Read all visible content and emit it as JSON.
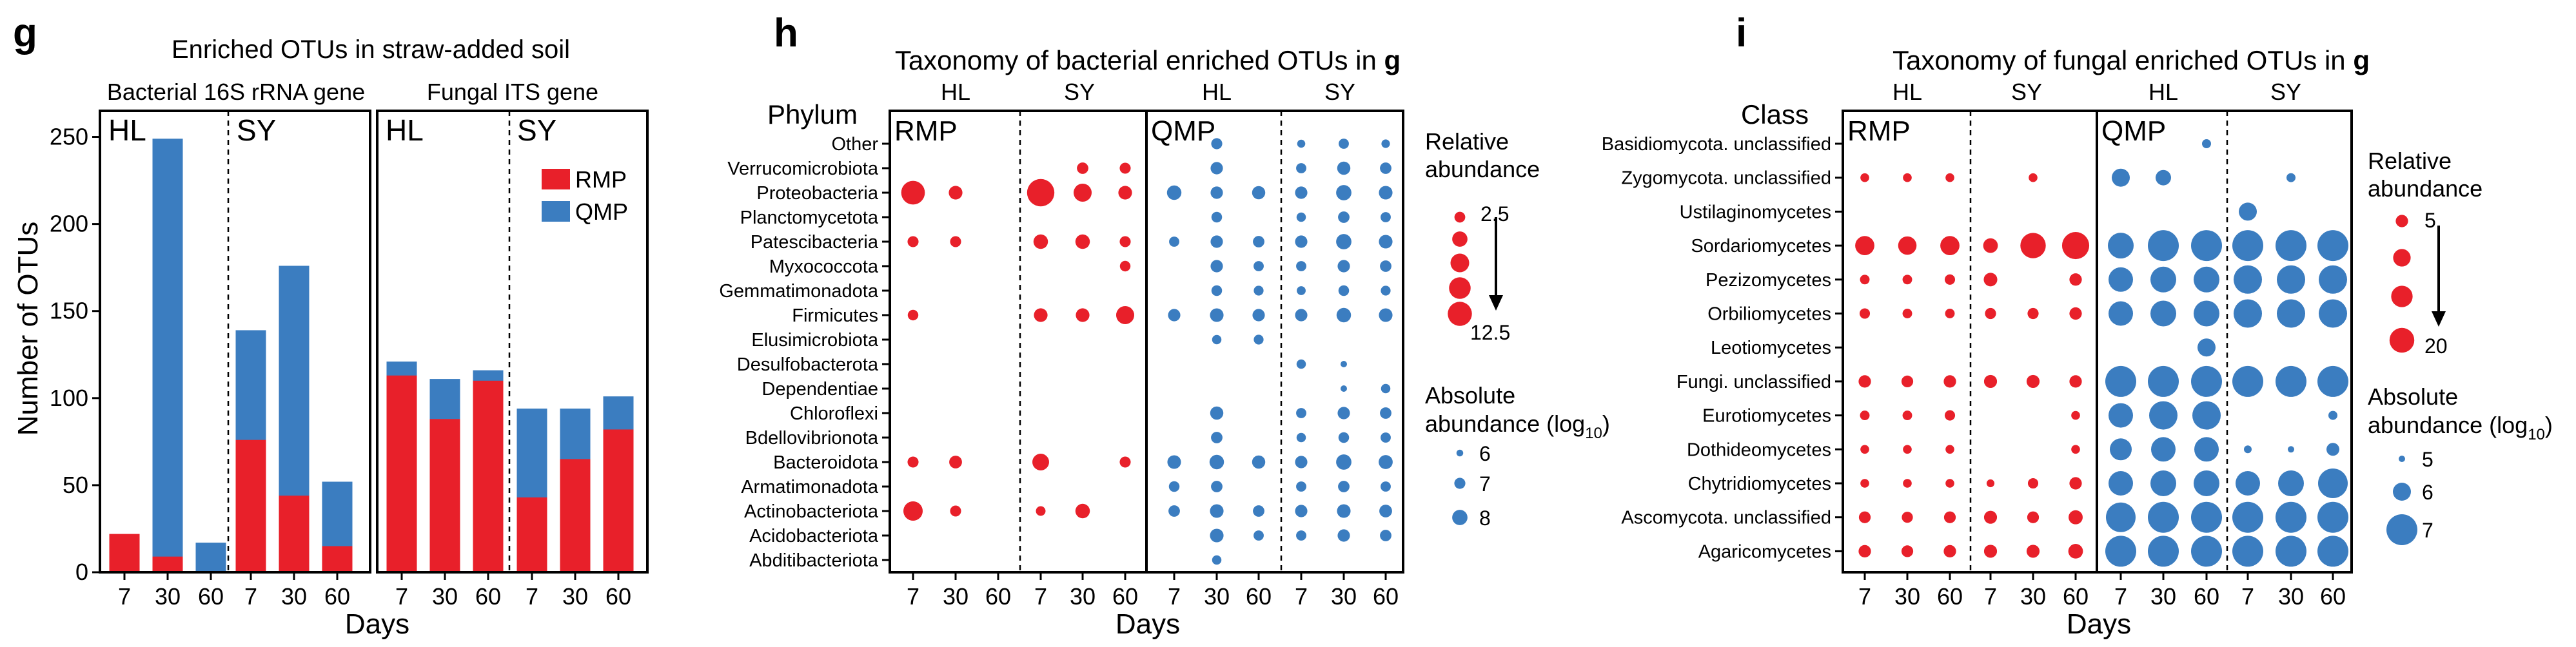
{
  "colors": {
    "rmp": "#e8202a",
    "qmp": "#3b7dc0",
    "frame": "#000000"
  },
  "panels": {
    "g": {
      "letter": "g",
      "title": "Enriched OTUs in straw-added soil",
      "subtitle_left": "Bacterial 16S rRNA gene",
      "subtitle_right": "Fungal ITS gene",
      "site_labels": [
        "HL",
        "SY",
        "HL",
        "SY"
      ],
      "legend": [
        "RMP",
        "QMP"
      ]
    },
    "h": {
      "letter": "h",
      "title_prefix": "Taxonomy of bacterial enriched OTUs in ",
      "title_bold": "g",
      "axis_title": "Phylum",
      "site_labels": [
        "HL",
        "SY",
        "HL",
        "SY"
      ],
      "group_labels": [
        "RMP",
        "QMP"
      ],
      "xlabel": "Days",
      "ticks": [
        "7",
        "30",
        "60",
        "7",
        "30",
        "60",
        "7",
        "30",
        "60",
        "7",
        "30",
        "60"
      ],
      "rel_title": [
        "Relative",
        "abundance"
      ],
      "rel_labels": [
        "2.5",
        "12.5"
      ],
      "abs_title_1": "Absolute",
      "abs_title_2": "abundance (log",
      "abs_sub": "10",
      "abs_close": ")",
      "abs_labels": [
        "6",
        "7",
        "8"
      ]
    },
    "i": {
      "letter": "i",
      "title_prefix": "Taxonomy of fungal enriched OTUs in ",
      "title_bold": "g",
      "axis_title": "Class",
      "site_labels": [
        "HL",
        "SY",
        "HL",
        "SY"
      ],
      "group_labels": [
        "RMP",
        "QMP"
      ],
      "xlabel": "Days",
      "ticks": [
        "7",
        "30",
        "60",
        "7",
        "30",
        "60",
        "7",
        "30",
        "60",
        "7",
        "30",
        "60"
      ],
      "rel_title": [
        "Relative",
        "abundance"
      ],
      "rel_labels": [
        "5",
        "20"
      ],
      "abs_title_1": "Absolute",
      "abs_title_2": "abundance (log",
      "abs_sub": "10",
      "abs_close": ")",
      "abs_labels": [
        "5",
        "6",
        "7"
      ]
    }
  },
  "chart_data": [
    {
      "type": "bar",
      "panel": "g",
      "title": "Enriched OTUs in straw-added soil",
      "xlabel": "Days",
      "ylabel": "Number of OTUs",
      "ylim": [
        0,
        265
      ],
      "yticks": [
        0,
        50,
        100,
        150,
        200,
        250
      ],
      "ylim_right": [
        0,
        265
      ],
      "groups": [
        {
          "gene": "Bacterial 16S rRNA gene",
          "site": "HL",
          "days": [
            "7",
            "30",
            "60"
          ],
          "rmp": [
            22,
            9,
            0
          ],
          "qmp": [
            14,
            249,
            17
          ]
        },
        {
          "gene": "Bacterial 16S rRNA gene",
          "site": "SY",
          "days": [
            "7",
            "30",
            "60"
          ],
          "rmp": [
            76,
            44,
            15
          ],
          "qmp": [
            139,
            176,
            52
          ]
        },
        {
          "gene": "Fungal ITS gene",
          "site": "HL",
          "days": [
            "7",
            "30",
            "60"
          ],
          "rmp": [
            113,
            88,
            110
          ],
          "qmp": [
            121,
            111,
            116
          ]
        },
        {
          "gene": "Fungal ITS gene",
          "site": "SY",
          "days": [
            "7",
            "30",
            "60"
          ],
          "rmp": [
            43,
            65,
            82
          ],
          "qmp": [
            94,
            94,
            101
          ]
        }
      ],
      "series": [
        {
          "name": "RMP"
        },
        {
          "name": "QMP"
        }
      ]
    },
    {
      "type": "scatter",
      "panel": "h",
      "title": "Taxonomy of bacterial enriched OTUs in g",
      "xlabel": "Days",
      "ylabel": "Phylum",
      "columns": [
        "RMP HL 7",
        "RMP HL 30",
        "RMP HL 60",
        "RMP SY 7",
        "RMP SY 30",
        "RMP SY 60",
        "QMP HL 7",
        "QMP HL 30",
        "QMP HL 60",
        "QMP SY 7",
        "QMP SY 30",
        "QMP SY 60"
      ],
      "rows": [
        "Other",
        "Verrucomicrobiota",
        "Proteobacteria",
        "Planctomycetota",
        "Patescibacteria",
        "Myxococcota",
        "Gemmatimonadota",
        "Firmicutes",
        "Elusimicrobiota",
        "Desulfobacterota",
        "Dependentiae",
        "Chloroflexi",
        "Bdellovibrionota",
        "Bacteroidota",
        "Armatimonadota",
        "Actinobacteriota",
        "Acidobacteriota",
        "Abditibacteriota"
      ],
      "rmp_relative_abundance": [
        [
          0,
          0,
          0,
          0,
          0,
          0
        ],
        [
          0,
          0,
          0,
          0,
          2.8,
          2.6
        ],
        [
          12,
          4,
          0,
          16,
          7,
          4
        ],
        [
          0,
          0,
          0,
          0,
          0,
          0
        ],
        [
          2.6,
          2.6,
          0,
          4.5,
          4.5,
          2.6
        ],
        [
          0,
          0,
          0,
          0,
          0,
          2.4
        ],
        [
          0,
          0,
          0,
          0,
          0,
          0
        ],
        [
          2.4,
          0,
          0,
          4,
          4,
          7
        ],
        [
          0,
          0,
          0,
          0,
          0,
          0
        ],
        [
          0,
          0,
          0,
          0,
          0,
          0
        ],
        [
          0,
          0,
          0,
          0,
          0,
          0
        ],
        [
          0,
          0,
          0,
          0,
          0,
          0
        ],
        [
          0,
          0,
          0,
          0,
          0,
          0
        ],
        [
          2.6,
          3.5,
          0,
          6,
          0,
          2.6
        ],
        [
          0,
          0,
          0,
          0,
          0,
          0
        ],
        [
          8,
          2.6,
          0,
          2,
          4.5,
          0
        ],
        [
          0,
          0,
          0,
          0,
          0,
          0
        ],
        [
          0,
          0,
          0,
          0,
          0,
          0
        ]
      ],
      "qmp_log10_abs_abundance": [
        [
          0,
          7,
          0,
          6.3,
          6.8,
          6.4
        ],
        [
          0,
          7.3,
          0,
          6.8,
          7.5,
          7.1
        ],
        [
          7.8,
          7.3,
          7.5,
          7.3,
          8,
          7.6
        ],
        [
          0,
          6.9,
          0,
          6.6,
          7.1,
          6.8
        ],
        [
          6.8,
          7.3,
          7.1,
          7.3,
          8,
          7.6
        ],
        [
          0,
          7.3,
          6.8,
          6.8,
          7.3,
          7.1
        ],
        [
          0,
          6.9,
          6.7,
          6.5,
          6.9,
          6.7
        ],
        [
          7.3,
          7.6,
          7.3,
          7.3,
          7.8,
          7.6
        ],
        [
          0,
          6.6,
          6.7,
          0,
          0,
          0
        ],
        [
          0,
          0,
          0,
          6.6,
          5.9,
          0
        ],
        [
          0,
          0,
          0,
          0,
          5.6,
          6.6
        ],
        [
          0,
          7.5,
          0,
          6.8,
          7.3,
          7.1
        ],
        [
          0,
          7.1,
          0,
          6.6,
          6.9,
          6.8
        ],
        [
          7.6,
          7.8,
          7.5,
          7.3,
          8,
          7.7
        ],
        [
          6.9,
          7.1,
          0,
          6.8,
          7.1,
          6.8
        ],
        [
          7.1,
          7.6,
          7.1,
          7.3,
          7.6,
          7.4
        ],
        [
          0,
          7.6,
          6.8,
          6.8,
          7.3,
          7.1
        ],
        [
          0,
          6.6,
          0,
          0,
          0,
          0
        ]
      ],
      "legend_relative_abundance": [
        2.5,
        12.5
      ],
      "legend_absolute_log10": [
        6,
        7,
        8
      ]
    },
    {
      "type": "scatter",
      "panel": "i",
      "title": "Taxonomy of fungal enriched OTUs in g",
      "xlabel": "Days",
      "ylabel": "Class",
      "columns": [
        "RMP HL 7",
        "RMP HL 30",
        "RMP HL 60",
        "RMP SY 7",
        "RMP SY 30",
        "RMP SY 60",
        "QMP HL 7",
        "QMP HL 30",
        "QMP HL 60",
        "QMP SY 7",
        "QMP SY 30",
        "QMP SY 60"
      ],
      "rows": [
        "Basidiomycota. unclassified",
        "Zygomycota. unclassified",
        "Ustilaginomycetes",
        "Sordariomycetes",
        "Pezizomycetes",
        "Orbiliomycetes",
        "Leotiomycetes",
        "Fungi. unclassified",
        "Eurotiomycetes",
        "Dothideomycetes",
        "Chytridiomycetes",
        "Ascomycota. unclassified",
        "Agaricomycetes"
      ],
      "rmp_relative_abundance": [
        [
          0,
          0,
          0,
          0,
          0,
          0
        ],
        [
          2.5,
          2.5,
          2.5,
          0,
          2.5,
          0
        ],
        [
          0,
          0,
          0,
          0,
          0,
          0
        ],
        [
          12,
          11,
          12,
          7,
          21,
          24
        ],
        [
          3,
          3,
          3.5,
          6,
          0,
          5
        ],
        [
          3.5,
          3,
          3,
          4,
          4,
          5
        ],
        [
          0,
          0,
          0,
          0,
          0,
          0
        ],
        [
          5,
          4.5,
          5,
          5.5,
          5.5,
          5
        ],
        [
          3,
          3,
          3.5,
          0,
          0,
          2.5
        ],
        [
          2.5,
          2.5,
          2.5,
          0,
          0,
          2.5
        ],
        [
          2.5,
          2.5,
          2.5,
          2,
          3.5,
          5
        ],
        [
          4.5,
          4,
          4.5,
          5.5,
          4.5,
          6.5
        ],
        [
          5,
          4.5,
          5,
          5.5,
          5.5,
          7
        ]
      ],
      "qmp_log10_abs_abundance": [
        [
          0,
          0,
          5.3,
          0,
          0,
          0
        ],
        [
          6,
          5.8,
          0,
          0,
          5.3,
          0
        ],
        [
          0,
          0,
          0,
          6,
          0,
          0
        ],
        [
          6.6,
          7,
          7,
          7,
          7,
          7
        ],
        [
          6.5,
          6.6,
          6.6,
          6.8,
          6.8,
          6.8
        ],
        [
          6.5,
          6.6,
          6.6,
          6.8,
          6.8,
          6.8
        ],
        [
          0,
          0,
          6,
          0,
          0,
          0
        ],
        [
          7,
          7,
          7,
          7,
          7,
          7
        ],
        [
          6.5,
          6.8,
          6.8,
          0,
          0,
          5.3
        ],
        [
          6.3,
          6.5,
          6.5,
          5.2,
          5,
          5.6
        ],
        [
          6.5,
          6.6,
          6.6,
          6.5,
          6.6,
          6.9
        ],
        [
          6.9,
          7,
          7,
          7,
          7,
          7
        ],
        [
          7,
          7,
          7,
          7,
          7,
          7
        ]
      ],
      "legend_relative_abundance": [
        5,
        20
      ],
      "legend_absolute_log10": [
        5,
        6,
        7
      ]
    }
  ]
}
